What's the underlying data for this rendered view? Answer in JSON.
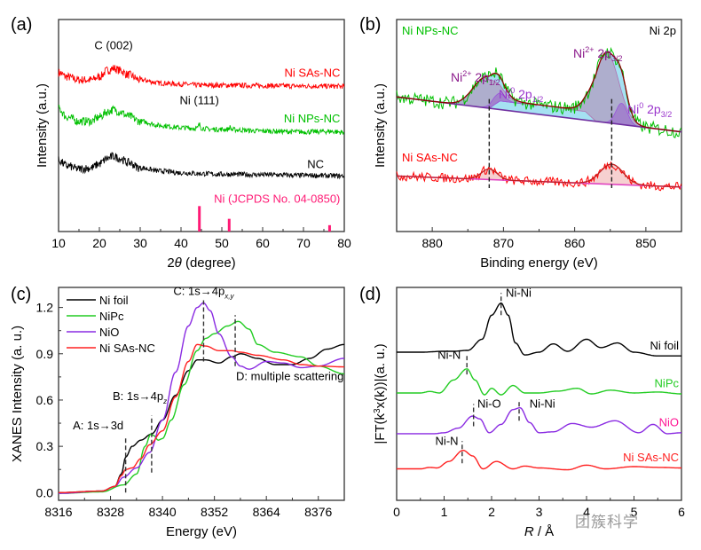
{
  "watermark": "团簇科学",
  "chart_data": [
    {
      "panel": "(a)",
      "type": "line",
      "xlabel": "2θ (degree)",
      "ylabel": "Intensity (a.u.)",
      "xlim": [
        10,
        80
      ],
      "xticks": [
        10,
        20,
        30,
        40,
        50,
        60,
        70,
        80
      ],
      "yticks": [],
      "noisy": true,
      "series": [
        {
          "name": "Ni SAs-NC",
          "color": "#ff0000",
          "label": "Ni SAs-NC",
          "x": [
            10,
            12,
            15,
            18,
            20,
            22,
            23.5,
            25,
            27,
            30,
            35,
            40,
            45,
            50,
            60,
            70,
            80
          ],
          "y": [
            0.75,
            0.73,
            0.715,
            0.715,
            0.73,
            0.76,
            0.77,
            0.76,
            0.74,
            0.715,
            0.7,
            0.695,
            0.69,
            0.69,
            0.688,
            0.686,
            0.685
          ]
        },
        {
          "name": "Ni NPs-NC",
          "color": "#00c000",
          "label": "Ni NPs-NC",
          "x": [
            10,
            12,
            15,
            18,
            20,
            22,
            23.5,
            25,
            27,
            30,
            35,
            40,
            44,
            44.5,
            45,
            47,
            51.5,
            52,
            52.5,
            60,
            70,
            76.5,
            80
          ],
          "y": [
            0.58,
            0.54,
            0.52,
            0.52,
            0.54,
            0.565,
            0.575,
            0.565,
            0.545,
            0.52,
            0.5,
            0.49,
            0.487,
            0.505,
            0.488,
            0.482,
            0.482,
            0.492,
            0.48,
            0.474,
            0.47,
            0.472,
            0.468
          ]
        },
        {
          "name": "NC",
          "color": "#000000",
          "label": "NC",
          "x": [
            10,
            12,
            15,
            18,
            20,
            22,
            23.5,
            25,
            27,
            30,
            35,
            40,
            45,
            50,
            60,
            70,
            80
          ],
          "y": [
            0.335,
            0.31,
            0.295,
            0.3,
            0.32,
            0.345,
            0.355,
            0.345,
            0.325,
            0.3,
            0.285,
            0.277,
            0.273,
            0.27,
            0.268,
            0.265,
            0.262
          ]
        }
      ],
      "reference": {
        "name": "Ni (JCPDS No. 04-0850)",
        "color": "#ff1a75",
        "x": [
          44.5,
          51.8,
          76.4
        ],
        "y": [
          0.12,
          0.06,
          0.03
        ]
      },
      "annotations": [
        {
          "text": "C (002)",
          "x": 23.5,
          "y": 0.86,
          "color": "#000000"
        },
        {
          "text": "Ni (111)",
          "x": 44.5,
          "y": 0.6,
          "color": "#000000"
        },
        {
          "text": "Ni SAs-NC",
          "x": 79,
          "y": 0.73,
          "color": "#ff0000",
          "anchor": "end"
        },
        {
          "text": "Ni NPs-NC",
          "x": 79,
          "y": 0.515,
          "color": "#00c000",
          "anchor": "end"
        },
        {
          "text": "NC",
          "x": 75,
          "y": 0.3,
          "color": "#000000",
          "anchor": "end"
        },
        {
          "text": "Ni (JCPDS No. 04-0850)",
          "x": 79,
          "y": 0.135,
          "color": "#ff1a75",
          "anchor": "end"
        }
      ]
    },
    {
      "panel": "(b)",
      "type": "line",
      "xlabel": "Binding energy (eV)",
      "ylabel": "Intensity (a.u.)",
      "xlim": [
        885,
        845
      ],
      "xticks": [
        880,
        870,
        860,
        850
      ],
      "yticks": [],
      "noisy": true,
      "title_right": "Ni 2p",
      "series": [
        {
          "name": "Ni NPs-NC",
          "color": "#00c000",
          "label": "Ni NPs-NC",
          "baseline": [
            [
              885,
              0.635
            ],
            [
              845,
              0.47
            ]
          ],
          "peaks": [
            {
              "center": 872.5,
              "height": 0.14,
              "width": 1.8,
              "name": "Ni2+ 2p1/2"
            },
            {
              "center": 870.8,
              "height": 0.04,
              "width": 0.9,
              "name": "Ni0 2p1/2"
            },
            {
              "center": 855.5,
              "height": 0.33,
              "width": 1.7,
              "name": "Ni2+ 2p3/2"
            },
            {
              "center": 853.4,
              "height": 0.1,
              "width": 0.8,
              "name": "Ni0 2p3/2"
            }
          ],
          "shoulder": {
            "from": 872,
            "to": 857,
            "height": 0.045
          }
        },
        {
          "name": "Ni SAs-NC",
          "color": "#ff0000",
          "label": "Ni SAs-NC",
          "baseline": [
            [
              885,
              0.262
            ],
            [
              845,
              0.21
            ]
          ],
          "peaks": [
            {
              "center": 872,
              "height": 0.05,
              "width": 1.1
            },
            {
              "center": 854.8,
              "height": 0.095,
              "width": 1.6
            }
          ]
        }
      ],
      "fit_colors": {
        "envelope": "#8b0000",
        "background": "#7030a0",
        "ni2": "#b48cb4",
        "ni0": "#9966cc",
        "fill": "#5bc8e8",
        "sas_bg": "#e040c0"
      },
      "dashed_lines": [
        872,
        854.8
      ],
      "annotations": [
        {
          "text": "Ni NPs-NC",
          "color": "#00c000"
        },
        {
          "text": "Ni SAs-NC",
          "color": "#ff0000"
        },
        {
          "text": "Ni 2p",
          "color": "#000000"
        },
        {
          "text": "Ni2+ 2p1/2",
          "main": "Ni",
          "sup": "2+",
          "mid": " 2p",
          "sub": "1/2",
          "color": "#8b1a8b"
        },
        {
          "text": "Ni0 2p1/2",
          "main": "Ni",
          "sup": "0",
          "mid": " 2p",
          "sub": "1/2",
          "color": "#9933cc"
        },
        {
          "text": "Ni2+ 2p3/2",
          "main": "Ni",
          "sup": "2+",
          "mid": " 2p",
          "sub": "3/2",
          "color": "#8b1a8b"
        },
        {
          "text": "Ni0 2p3/2",
          "main": "Ni",
          "sup": "0",
          "mid": " 2p",
          "sub": "3/2",
          "color": "#9933cc"
        }
      ]
    },
    {
      "panel": "(c)",
      "type": "line",
      "xlabel": "Energy (eV)",
      "ylabel": "XANES Intensity (a. u.)",
      "xlim": [
        8316,
        8382
      ],
      "ylim": [
        -0.05,
        1.33
      ],
      "xticks": [
        8316,
        8328,
        8340,
        8352,
        8364,
        8376
      ],
      "yticks": [
        0.0,
        0.3,
        0.6,
        0.9,
        1.2
      ],
      "ytick_labels": [
        "0.0",
        "0.3",
        "0.6",
        "0.9",
        "1.2"
      ],
      "legend": "top-left",
      "series": [
        {
          "name": "Ni foil",
          "color": "#000000",
          "x": [
            8316,
            8326,
            8329,
            8330.5,
            8331.5,
            8333,
            8335,
            8337.5,
            8340,
            8343,
            8346,
            8348,
            8350,
            8353,
            8356,
            8358,
            8362,
            8366,
            8370,
            8374,
            8378,
            8382
          ],
          "y": [
            0.0,
            0.01,
            0.04,
            0.12,
            0.23,
            0.3,
            0.34,
            0.38,
            0.47,
            0.63,
            0.79,
            0.86,
            0.86,
            0.84,
            0.88,
            0.9,
            0.87,
            0.83,
            0.83,
            0.87,
            0.93,
            0.96
          ]
        },
        {
          "name": "NiPc",
          "color": "#22cc22",
          "x": [
            8316,
            8326,
            8331,
            8334,
            8336,
            8337.3,
            8338,
            8339,
            8340,
            8342,
            8345,
            8348,
            8350,
            8352,
            8355,
            8357.5,
            8360,
            8362,
            8366,
            8372,
            8376,
            8382
          ],
          "y": [
            -0.005,
            0.005,
            0.05,
            0.12,
            0.3,
            0.38,
            0.37,
            0.34,
            0.35,
            0.47,
            0.7,
            0.92,
            1.0,
            1.03,
            1.08,
            1.11,
            1.06,
            0.96,
            0.91,
            0.88,
            0.82,
            0.77
          ]
        },
        {
          "name": "NiO",
          "color": "#8a2be2",
          "x": [
            8316,
            8326,
            8329,
            8331,
            8334,
            8337,
            8340,
            8343,
            8346,
            8348,
            8349.5,
            8351,
            8353,
            8356,
            8358,
            8360,
            8364,
            8368,
            8372,
            8376,
            8382
          ],
          "y": [
            -0.005,
            0.01,
            0.04,
            0.1,
            0.16,
            0.26,
            0.47,
            0.78,
            1.08,
            1.2,
            1.23,
            1.18,
            1.03,
            0.88,
            0.82,
            0.8,
            0.85,
            0.84,
            0.81,
            0.82,
            0.87
          ]
        },
        {
          "name": "Ni SAs-NC",
          "color": "#ff2020",
          "x": [
            8316,
            8326,
            8329,
            8330.5,
            8331.5,
            8333,
            8335,
            8337,
            8340,
            8343,
            8346,
            8348,
            8350,
            8353,
            8356,
            8358,
            8362,
            8368,
            8372,
            8376,
            8382
          ],
          "y": [
            0.0,
            0.01,
            0.04,
            0.11,
            0.15,
            0.16,
            0.22,
            0.31,
            0.4,
            0.62,
            0.85,
            0.96,
            0.95,
            0.92,
            0.92,
            0.91,
            0.89,
            0.86,
            0.83,
            0.82,
            0.815
          ]
        }
      ],
      "dashed_lines": [
        {
          "x": 8331.5,
          "y0": 0.0,
          "y1": 0.36
        },
        {
          "x": 8337.5,
          "y0": 0.13,
          "y1": 0.5
        },
        {
          "x": 8349.5,
          "y0": 0.85,
          "y1": 1.26
        },
        {
          "x": 8356.8,
          "y0": 0.82,
          "y1": 1.15
        }
      ],
      "annotations": [
        {
          "text": "A: 1s→3d",
          "x": 8331,
          "y": 0.41,
          "anchor": "end"
        },
        {
          "text": "B: 1s→4pz",
          "main": "B: 1s→4p",
          "sub": "z",
          "x": 8328.5,
          "y": 0.6,
          "anchor": "start"
        },
        {
          "text": "C: 1s→4px,y",
          "main": "C: 1s→4p",
          "sub": "x,y",
          "x": 8349.5,
          "y": 1.28,
          "anchor": "middle"
        },
        {
          "text": "D: multiple scattering",
          "x": 8357,
          "y": 0.73,
          "anchor": "start"
        }
      ]
    },
    {
      "panel": "(d)",
      "type": "line",
      "xlabel": "R / Å",
      "ylabel": "|FT(k3x(k))|(a. u.)",
      "xlim": [
        0,
        6
      ],
      "xticks": [
        0,
        1,
        2,
        3,
        4,
        5,
        6
      ],
      "yticks": [],
      "series": [
        {
          "name": "Ni foil",
          "color": "#000000",
          "label_color": "#000000",
          "offset": 0.6,
          "x": [
            0,
            0.5,
            1.0,
            1.2,
            1.5,
            1.8,
            2.0,
            2.2,
            2.35,
            2.5,
            2.7,
            3.0,
            3.3,
            3.6,
            4.0,
            4.3,
            4.65,
            5.0,
            5.5,
            6.0
          ],
          "y": [
            0.0,
            0.0,
            0.005,
            0.005,
            0.01,
            0.07,
            0.2,
            0.265,
            0.2,
            0.05,
            -0.015,
            0.0,
            0.045,
            0.005,
            0.07,
            0.025,
            0.05,
            0.0,
            -0.02,
            -0.02
          ]
        },
        {
          "name": "NiPc",
          "color": "#22cc22",
          "label_color": "#22cc22",
          "offset": 0.38,
          "x": [
            0,
            0.5,
            0.7,
            0.9,
            1.2,
            1.48,
            1.65,
            1.85,
            2.0,
            2.2,
            2.45,
            2.7,
            3.0,
            3.4,
            3.8,
            4.1,
            4.5,
            5.0,
            5.5,
            6.0
          ],
          "y": [
            0.0,
            0.0,
            0.008,
            0.0,
            0.07,
            0.13,
            0.07,
            -0.01,
            0.025,
            -0.01,
            0.04,
            0.0,
            0.0,
            0.01,
            0.025,
            -0.005,
            0.015,
            0.0,
            0.005,
            -0.005
          ]
        },
        {
          "name": "NiO",
          "color": "#8a2be2",
          "label_color": "#ff1493",
          "offset": 0.16,
          "x": [
            0,
            0.5,
            0.8,
            1.0,
            1.3,
            1.6,
            1.75,
            1.95,
            2.2,
            2.45,
            2.6,
            2.8,
            3.0,
            3.3,
            3.7,
            4.1,
            4.6,
            5.1,
            5.4,
            5.7,
            6.0
          ],
          "y": [
            0.0,
            0.0,
            0.0,
            0.005,
            0.03,
            0.095,
            0.08,
            0.005,
            0.05,
            0.13,
            0.14,
            0.06,
            0.005,
            0.01,
            0.055,
            0.035,
            0.07,
            0.005,
            0.05,
            0.0,
            0.005
          ]
        },
        {
          "name": "Ni SAs-NC",
          "color": "#ff2020",
          "label_color": "#ff2020",
          "offset": -0.03,
          "x": [
            0,
            0.5,
            0.7,
            0.85,
            1.1,
            1.4,
            1.6,
            1.82,
            2.1,
            2.45,
            2.7,
            3.0,
            3.6,
            4.0,
            4.4,
            5.0,
            5.5,
            6.0
          ],
          "y": [
            0.0,
            0.0,
            0.008,
            0.005,
            0.04,
            0.1,
            0.07,
            0.0,
            0.04,
            0.0,
            0.015,
            0.005,
            -0.005,
            0.02,
            0.0,
            0.012,
            0.008,
            0.005
          ]
        }
      ],
      "dashed_lines": [
        {
          "x": 2.2,
          "y0": 0.8,
          "y1": 0.92
        },
        {
          "x": 1.48,
          "y0": 0.48,
          "y1": 0.58
        },
        {
          "x": 1.62,
          "y0": 0.2,
          "y1": 0.32
        },
        {
          "x": 2.58,
          "y0": 0.23,
          "y1": 0.34
        },
        {
          "x": 1.38,
          "y0": 0.0,
          "y1": 0.12
        }
      ],
      "annotations": [
        {
          "text": "Ni-Ni",
          "x": 2.3,
          "y": 0.9,
          "anchor": "start",
          "color": "#000000"
        },
        {
          "text": "Ni-N",
          "x": 1.35,
          "y": 0.565,
          "anchor": "end",
          "color": "#000000"
        },
        {
          "text": "Ni-O",
          "x": 1.7,
          "y": 0.3,
          "anchor": "start",
          "color": "#000000"
        },
        {
          "text": "Ni-Ni",
          "x": 2.8,
          "y": 0.3,
          "anchor": "start",
          "color": "#000000"
        },
        {
          "text": "Ni-N",
          "x": 1.3,
          "y": 0.1,
          "anchor": "end",
          "color": "#000000"
        }
      ]
    }
  ]
}
